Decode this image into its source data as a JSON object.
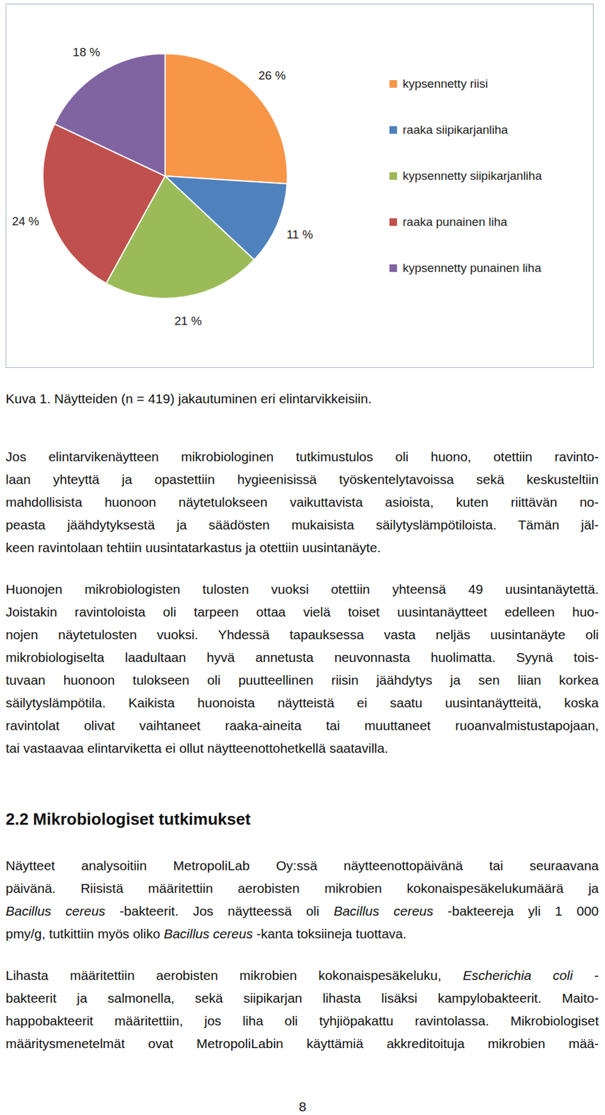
{
  "chart_data": {
    "type": "pie",
    "categories": [
      "kypsennetty riisi",
      "raaka siipikarjanliha",
      "kypsennetty siipikarjanliha",
      "raaka punainen liha",
      "kypsennetty punainen liha"
    ],
    "values": [
      26,
      11,
      21,
      24,
      18
    ],
    "value_labels": [
      "26 %",
      "11 %",
      "21 %",
      "24 %",
      "18 %"
    ],
    "colors": [
      "#F79646",
      "#4F81BD",
      "#9BBB59",
      "#C0504D",
      "#8064A2"
    ],
    "legend": "right",
    "data_labels": true
  },
  "caption": "Kuva 1. Näytteiden (n = 419) jakautuminen eri elintarvikkeisiin.",
  "paragraphs_before_heading": [
    [
      [
        "Jos elintarvikenäytteen mikrobiologinen tutkimustulos oli huono, otettiin ravinto-"
      ],
      [
        "laan yhteyttä ja opastettiin hygieenisissä työskentelytavoissa sekä keskusteltiin"
      ],
      [
        "mahdollisista huonoon näytetulokseen vaikuttavista asioista, kuten riittävän no-"
      ],
      [
        "peasta jäähdytyksestä ja säädösten mukaisista säilytyslämpötiloista. Tämän jäl-"
      ],
      [
        "keen ravintolaan tehtiin uusintatarkastus ja otettiin uusintanäyte."
      ]
    ],
    [
      [
        "Huonojen mikrobiologisten tulosten vuoksi otettiin yhteensä 49 uusintanäytettä."
      ],
      [
        "Joistakin ravintoloista oli tarpeen ottaa vielä toiset uusintanäytteet edelleen huo-"
      ],
      [
        "nojen näytetulosten vuoksi. Yhdessä tapauksessa vasta neljäs uusintanäyte oli"
      ],
      [
        "mikrobiologiselta laadultaan hyvä annetusta neuvonnasta huolimatta. Syynä tois-"
      ],
      [
        "tuvaan huonoon tulokseen oli puutteellinen riisin jäähdytys ja sen liian korkea"
      ],
      [
        "säilytyslämpötila. Kaikista huonoista näytteistä ei saatu uusintanäytteitä, koska"
      ],
      [
        "ravintolat olivat vaihtaneet raaka-aineita tai muuttaneet ruoanvalmistustapojaan,"
      ],
      [
        "tai vastaavaa elintarviketta ei ollut näytteenottohetkellä saatavilla."
      ]
    ]
  ],
  "heading": "2.2 Mikrobiologiset tutkimukset",
  "paragraphs_after_heading": [
    [
      [
        "Näytteet analysoitiin MetropoliLab Oy:ssä näytteenottopäivänä tai seuraavana"
      ],
      [
        "päivänä. Riisistä määritettiin aerobisten mikrobien kokonaispesäkelukumäärä ja"
      ],
      [
        {
          "italic": "Bacillus cereus"
        },
        " -bakteerit. Jos näytteessä oli ",
        {
          "italic": "Bacillus cereus"
        },
        " -bakteereja yli 1 000"
      ],
      [
        "pmy/g, tutkittiin myös oliko ",
        {
          "italic": "Bacillus cereus"
        },
        " -kanta toksiineja tuottava."
      ]
    ],
    [
      [
        "Lihasta määritettiin aerobisten mikrobien kokonaispesäkeluku, ",
        {
          "italic": "Escherichia coli"
        },
        " -"
      ],
      [
        "bakteerit ja salmonella, sekä siipikarjan lihasta lisäksi kampylobakteerit. Maito-"
      ],
      [
        "happobakteerit määritettiin, jos liha oli tyhjiöpakattu ravintolassa. Mikrobiologiset"
      ],
      [
        "määritysmenetelmät ovat MetropoliLabin käyttämiä akkreditoituja mikrobien mää-"
      ]
    ]
  ],
  "page_number": 8
}
